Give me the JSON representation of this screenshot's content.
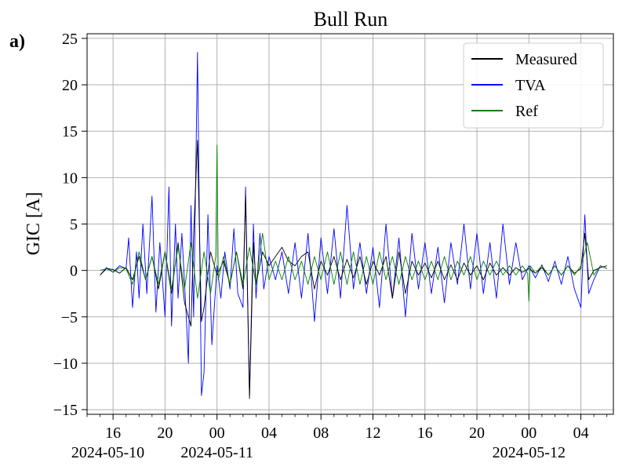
{
  "panel_label": "a)",
  "chart_data": {
    "type": "line",
    "title": "Bull Run",
    "xlabel": "",
    "ylabel": "GIC [A]",
    "x_unit": "hours since 2024-05-10 00:00",
    "xlim": [
      14.0,
      54.5
    ],
    "ylim": [
      -15.5,
      25.5
    ],
    "grid": true,
    "legend_position": "top-right",
    "x_ticks": [
      {
        "x": 16,
        "label": "16"
      },
      {
        "x": 20,
        "label": "20"
      },
      {
        "x": 24,
        "label": "00"
      },
      {
        "x": 28,
        "label": "04"
      },
      {
        "x": 32,
        "label": "08"
      },
      {
        "x": 36,
        "label": "12"
      },
      {
        "x": 40,
        "label": "16"
      },
      {
        "x": 44,
        "label": "20"
      },
      {
        "x": 48,
        "label": "00"
      },
      {
        "x": 52,
        "label": "04"
      }
    ],
    "date_labels": [
      {
        "x": 15.6,
        "label": "2024-05-10"
      },
      {
        "x": 24.0,
        "label": "2024-05-11"
      },
      {
        "x": 48.0,
        "label": "2024-05-12"
      }
    ],
    "y_ticks": [
      -15,
      -10,
      -5,
      0,
      5,
      10,
      15,
      20,
      25
    ],
    "y_tick_labels": [
      "−15",
      "−10",
      "−5",
      "0",
      "5",
      "10",
      "15",
      "20",
      "25"
    ],
    "series": [
      {
        "name": "TVA",
        "color": "#0000ff",
        "x": [
          15.0,
          15.5,
          16.0,
          16.5,
          17.0,
          17.2,
          17.5,
          17.8,
          18.0,
          18.3,
          18.6,
          19.0,
          19.3,
          19.6,
          20.0,
          20.3,
          20.5,
          20.8,
          21.0,
          21.3,
          21.6,
          21.8,
          22.0,
          22.2,
          22.5,
          22.8,
          23.0,
          23.3,
          23.6,
          24.0,
          24.3,
          24.6,
          25.0,
          25.3,
          25.6,
          26.0,
          26.2,
          26.5,
          26.8,
          27.0,
          27.3,
          27.6,
          28.0,
          28.5,
          29.0,
          29.5,
          30.0,
          30.5,
          31.0,
          31.5,
          32.0,
          32.5,
          33.0,
          33.5,
          34.0,
          34.5,
          35.0,
          35.5,
          36.0,
          36.5,
          37.0,
          37.5,
          38.0,
          38.5,
          39.0,
          39.5,
          40.0,
          40.5,
          41.0,
          41.5,
          42.0,
          42.5,
          43.0,
          43.5,
          44.0,
          44.5,
          45.0,
          45.5,
          46.0,
          46.5,
          47.0,
          47.5,
          48.0,
          48.5,
          49.0,
          49.5,
          50.0,
          50.5,
          51.0,
          51.5,
          52.0,
          52.3,
          52.6,
          53.0,
          53.5,
          54.0
        ],
        "values": [
          -0.5,
          0.3,
          -0.2,
          0.5,
          0.2,
          3.5,
          -4.0,
          2.0,
          -3.0,
          5.0,
          -2.5,
          8.0,
          -4.5,
          3.0,
          -5.0,
          9.0,
          -6.0,
          5.0,
          -3.0,
          4.0,
          -4.0,
          -10.0,
          7.0,
          -5.0,
          23.5,
          -13.5,
          -11.0,
          6.0,
          -8.0,
          0.5,
          -3.0,
          2.0,
          -2.0,
          4.5,
          -2.5,
          -4.0,
          9.0,
          -13.5,
          5.0,
          -3.0,
          4.0,
          -2.0,
          1.5,
          -1.0,
          2.0,
          -2.5,
          3.0,
          -3.0,
          4.0,
          -5.5,
          3.5,
          -2.5,
          4.5,
          -3.0,
          7.0,
          -2.0,
          3.0,
          -2.5,
          2.5,
          -4.0,
          5.0,
          -3.0,
          3.5,
          -5.0,
          4.0,
          -2.0,
          3.0,
          -2.5,
          2.5,
          -3.5,
          3.0,
          -1.5,
          5.0,
          -2.0,
          4.0,
          -2.5,
          3.0,
          -3.0,
          5.0,
          -1.5,
          3.0,
          -1.0,
          0.5,
          -0.8,
          0.6,
          -1.2,
          1.0,
          -1.5,
          1.5,
          -2.0,
          -4.0,
          6.0,
          -2.5,
          -1.0,
          0.5,
          0.2
        ]
      },
      {
        "name": "Measured",
        "color": "#000000",
        "x": [
          15.0,
          15.5,
          16.0,
          16.5,
          17.0,
          17.5,
          18.0,
          18.5,
          19.0,
          19.5,
          20.0,
          20.5,
          21.0,
          21.5,
          22.0,
          22.2,
          22.5,
          22.8,
          23.0,
          23.5,
          24.0,
          24.5,
          25.0,
          25.5,
          26.0,
          26.2,
          26.5,
          26.8,
          27.0,
          27.5,
          28.0,
          28.5,
          29.0,
          29.5,
          30.0,
          30.5,
          31.0,
          31.5,
          32.0,
          32.5,
          33.0,
          33.5,
          34.0,
          34.5,
          35.0,
          35.5,
          36.0,
          36.5,
          37.0,
          37.5,
          38.0,
          38.5,
          39.0,
          39.5,
          40.0,
          40.5,
          41.0,
          41.5,
          42.0,
          42.5,
          43.0,
          43.5,
          44.0,
          44.5,
          45.0,
          45.5,
          46.0,
          46.5,
          47.0,
          47.5,
          48.0,
          48.5,
          49.0,
          49.5,
          50.0,
          50.5,
          51.0,
          51.5,
          52.0,
          52.3,
          52.6,
          53.0,
          53.5,
          54.0
        ],
        "values": [
          -0.5,
          0.2,
          0.1,
          -0.3,
          0.3,
          -1.0,
          1.5,
          -1.0,
          1.5,
          -2.0,
          2.0,
          -2.5,
          3.0,
          -3.5,
          -6.0,
          4.0,
          14.0,
          -5.5,
          -4.0,
          2.0,
          -0.5,
          1.0,
          -1.5,
          2.0,
          -2.0,
          8.0,
          -13.8,
          3.0,
          -1.5,
          2.0,
          0.5,
          1.5,
          2.5,
          1.0,
          0.5,
          1.5,
          2.0,
          -2.0,
          1.0,
          -0.5,
          1.5,
          -1.0,
          1.2,
          -0.8,
          1.5,
          -1.5,
          1.0,
          -0.5,
          1.5,
          -3.0,
          2.0,
          -2.5,
          1.0,
          -0.5,
          0.8,
          -0.8,
          1.0,
          -1.0,
          0.6,
          -1.0,
          0.8,
          -0.5,
          0.5,
          -1.0,
          0.8,
          -0.5,
          0.3,
          -0.5,
          0.3,
          -0.2,
          0.2,
          -0.3,
          0.3,
          -0.5,
          0.5,
          -0.5,
          0.5,
          -0.3,
          0.2,
          4.0,
          -1.0,
          0.0,
          0.3,
          0.5
        ]
      },
      {
        "name": "Ref",
        "color": "#008000",
        "x": [
          15.0,
          15.5,
          16.0,
          16.5,
          17.0,
          17.5,
          18.0,
          18.5,
          19.0,
          19.5,
          20.0,
          20.5,
          21.0,
          21.5,
          22.0,
          22.5,
          23.0,
          23.5,
          23.9,
          24.0,
          24.1,
          24.5,
          25.0,
          25.5,
          26.0,
          26.5,
          27.0,
          27.5,
          28.0,
          28.5,
          29.0,
          29.5,
          30.0,
          30.5,
          31.0,
          31.5,
          32.0,
          32.5,
          33.0,
          33.5,
          34.0,
          34.5,
          35.0,
          35.5,
          36.0,
          36.5,
          37.0,
          37.5,
          38.0,
          38.5,
          39.0,
          39.5,
          40.0,
          40.5,
          41.0,
          41.5,
          42.0,
          42.5,
          43.0,
          43.5,
          44.0,
          44.5,
          45.0,
          45.5,
          46.0,
          46.5,
          47.0,
          47.5,
          47.9,
          48.0,
          48.1,
          48.5,
          49.0,
          49.5,
          50.0,
          50.5,
          51.0,
          51.5,
          52.0,
          52.5,
          53.0,
          53.5,
          54.0
        ],
        "values": [
          0.0,
          0.2,
          -0.2,
          0.3,
          0.2,
          -1.5,
          2.0,
          -1.0,
          1.5,
          -1.5,
          2.0,
          -2.0,
          2.5,
          -2.0,
          3.0,
          -3.0,
          2.0,
          -2.5,
          1.5,
          13.5,
          -1.0,
          1.5,
          -1.5,
          2.0,
          -1.5,
          2.5,
          -1.5,
          4.0,
          -1.0,
          1.0,
          -1.0,
          1.5,
          -1.0,
          1.0,
          -1.5,
          1.5,
          -1.0,
          2.0,
          -1.5,
          2.0,
          -1.5,
          2.0,
          -1.5,
          1.5,
          -1.5,
          2.0,
          -1.0,
          1.5,
          -1.5,
          1.5,
          -1.0,
          1.0,
          -1.0,
          1.0,
          -1.0,
          1.5,
          -1.0,
          1.0,
          -0.5,
          1.5,
          -1.0,
          1.0,
          -0.5,
          1.0,
          -0.5,
          0.5,
          -0.5,
          0.5,
          -0.3,
          -3.3,
          0.5,
          -0.3,
          0.5,
          -0.5,
          0.5,
          -0.5,
          0.5,
          -0.5,
          0.5,
          3.0,
          -0.5,
          0.5,
          0.2
        ]
      }
    ],
    "legend_order": [
      "Measured",
      "TVA",
      "Ref"
    ]
  }
}
